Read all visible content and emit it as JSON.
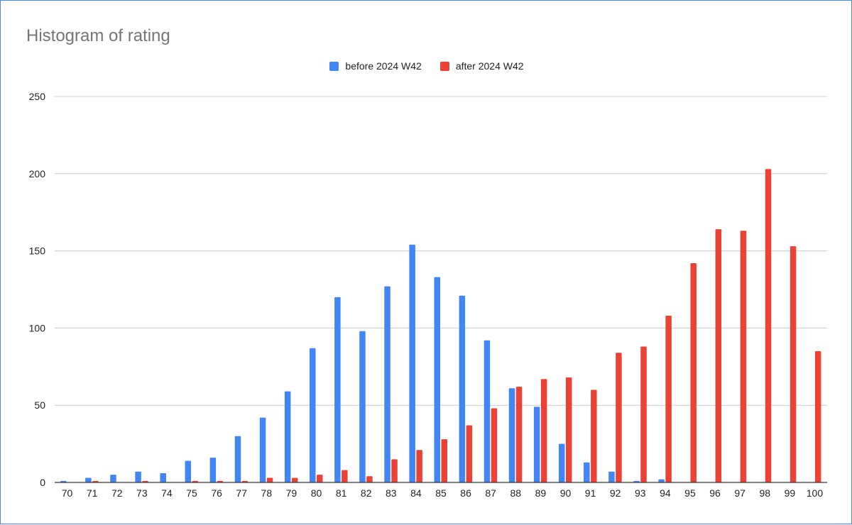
{
  "colors": {
    "series1": "#4285f4",
    "series2": "#ea4335",
    "grid": "#cccccc",
    "axis": "#333333"
  },
  "chart_data": {
    "type": "bar",
    "title": "Histogram of rating",
    "xlabel": "",
    "ylabel": "",
    "ylim": [
      0,
      250
    ],
    "yticks": [
      0,
      50,
      100,
      150,
      200,
      250
    ],
    "grid": true,
    "legend_position": "top",
    "categories": [
      "70",
      "71",
      "72",
      "73",
      "74",
      "75",
      "76",
      "77",
      "78",
      "79",
      "80",
      "81",
      "82",
      "83",
      "84",
      "85",
      "86",
      "87",
      "88",
      "89",
      "90",
      "91",
      "92",
      "93",
      "94",
      "95",
      "96",
      "97",
      "98",
      "99",
      "100"
    ],
    "series": [
      {
        "name": "before 2024 W42",
        "color": "#4285f4",
        "values": [
          1,
          3,
          5,
          7,
          6,
          14,
          16,
          30,
          42,
          59,
          87,
          120,
          98,
          127,
          154,
          133,
          121,
          92,
          61,
          49,
          25,
          13,
          7,
          1,
          2,
          0,
          0,
          0,
          0,
          0,
          0
        ]
      },
      {
        "name": "after 2024 W42",
        "color": "#ea4335",
        "values": [
          0,
          1,
          0,
          1,
          0,
          1,
          1,
          1,
          3,
          3,
          5,
          8,
          4,
          15,
          21,
          28,
          37,
          48,
          62,
          67,
          68,
          60,
          84,
          88,
          108,
          142,
          164,
          163,
          203,
          153,
          85
        ]
      }
    ]
  }
}
